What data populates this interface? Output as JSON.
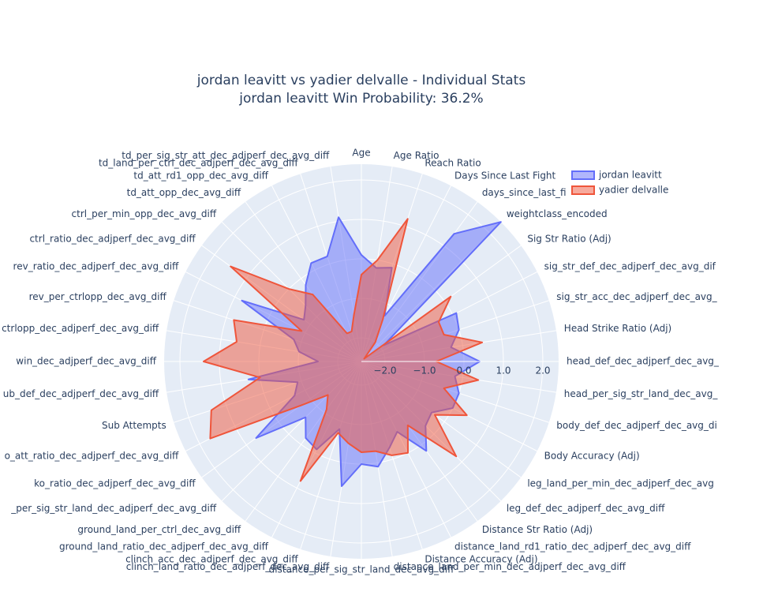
{
  "chart_data": {
    "type": "radar",
    "title": "jordan leavitt vs yadier delvalle - Individual Stats",
    "subtitle": "jordan leavitt Win Probability: 36.2%",
    "categories": [
      "Age",
      "Age Ratio",
      "Reach Ratio",
      "Days Since Last Fight",
      "days_since_last_fi",
      "weightclass_encoded",
      "Sig Str Ratio (Adj)",
      "sig_str_def_dec_adjperf_dec_avg_dif",
      "sig_str_acc_dec_adjperf_dec_avg_",
      "Head Strike Ratio (Adj)",
      "head_def_dec_adjperf_dec_avg_",
      "head_per_sig_str_land_dec_avg_",
      "body_def_dec_adjperf_dec_avg_di",
      "Body Accuracy (Adj)",
      "leg_land_per_min_dec_adjperf_dec_avg",
      "leg_def_dec_adjperf_dec_avg_diff",
      "Distance Str Ratio (Adj)",
      "distance_land_rd1_ratio_dec_adjperf_dec_avg_diff",
      "Distance Accuracy (Adj)",
      "distance_land_per_min_dec_adjperf_dec_avg_diff",
      "distance_per_sig_str_land_dec_avg_diff",
      "clinch_land_ratio_dec_adjperf_dec_avg_diff",
      "clinch_acc_dec_adjperf_dec_avg_diff",
      "ground_land_ratio_dec_adjperf_dec_avg_diff",
      "ground_land_per_ctrl_dec_avg_diff",
      "_per_sig_str_land_dec_adjperf_dec_avg_diff",
      "ko_ratio_dec_adjperf_dec_avg_diff",
      "o_att_ratio_dec_adjperf_dec_avg_diff",
      "Sub Attempts",
      "ub_def_dec_adjperf_dec_avg_diff",
      "win_dec_adjperf_dec_avg_diff",
      "ctrlopp_dec_adjperf_dec_avg_diff",
      "rev_per_ctrlopp_dec_avg_diff",
      "rev_ratio_dec_adjperf_dec_avg_diff",
      "ctrl_ratio_dec_adjperf_dec_avg_diff",
      "ctrl_per_min_opp_dec_avg_diff",
      "td_att_opp_dec_avg_diff",
      "td_att_rd1_opp_dec_avg_diff",
      "td_land_per_ctrl_dec_adjperf_dec_avg_diff",
      "td_per_sig_str_att_dec_adjperf_dec_avg_diff"
    ],
    "series": [
      {
        "name": "jordan leavitt",
        "color": "#636efa",
        "values": [
          0.1,
          -0.2,
          -0.1,
          -1.3,
          1.4,
          2.4,
          -1.9,
          0.1,
          0.0,
          -0.3,
          0.4,
          -0.2,
          0.0,
          0.0,
          -0.4,
          -0.3,
          0.2,
          -0.6,
          -0.3,
          0.1,
          0.0,
          0.6,
          -0.8,
          -0.1,
          -0.2,
          -0.6,
          0.7,
          -0.7,
          -0.9,
          0.3,
          -1.5,
          -1.0,
          -0.8,
          0.8,
          -0.8,
          -0.6,
          -0.2,
          0.2,
          0.2,
          1.1
        ]
      },
      {
        "name": "yadier delvalle",
        "color": "#ef553b",
        "values": [
          -0.4,
          0.0,
          1.2,
          -1.4,
          -2.0,
          -2.5,
          0.2,
          -0.4,
          -0.4,
          0.5,
          -0.7,
          0.4,
          -0.4,
          0.4,
          -0.3,
          0.8,
          -0.6,
          0.0,
          -0.1,
          -0.3,
          -0.3,
          -0.5,
          -0.7,
          0.8,
          -1.1,
          -1.4,
          -0.7,
          1.7,
          1.4,
          0.0,
          1.4,
          0.6,
          0.8,
          -0.9,
          1.5,
          0.0,
          -0.5,
          -1.8,
          -1.8,
          -1.4
        ]
      }
    ],
    "rlim": [
      -2.6,
      2.4
    ],
    "rticks": [
      {
        "value": -2,
        "label": "−2.0"
      },
      {
        "value": -1,
        "label": "−1.0"
      },
      {
        "value": 0,
        "label": "0.0"
      },
      {
        "value": 1,
        "label": "1.0"
      },
      {
        "value": 2,
        "label": "2.0"
      }
    ],
    "legend": "top-right"
  }
}
